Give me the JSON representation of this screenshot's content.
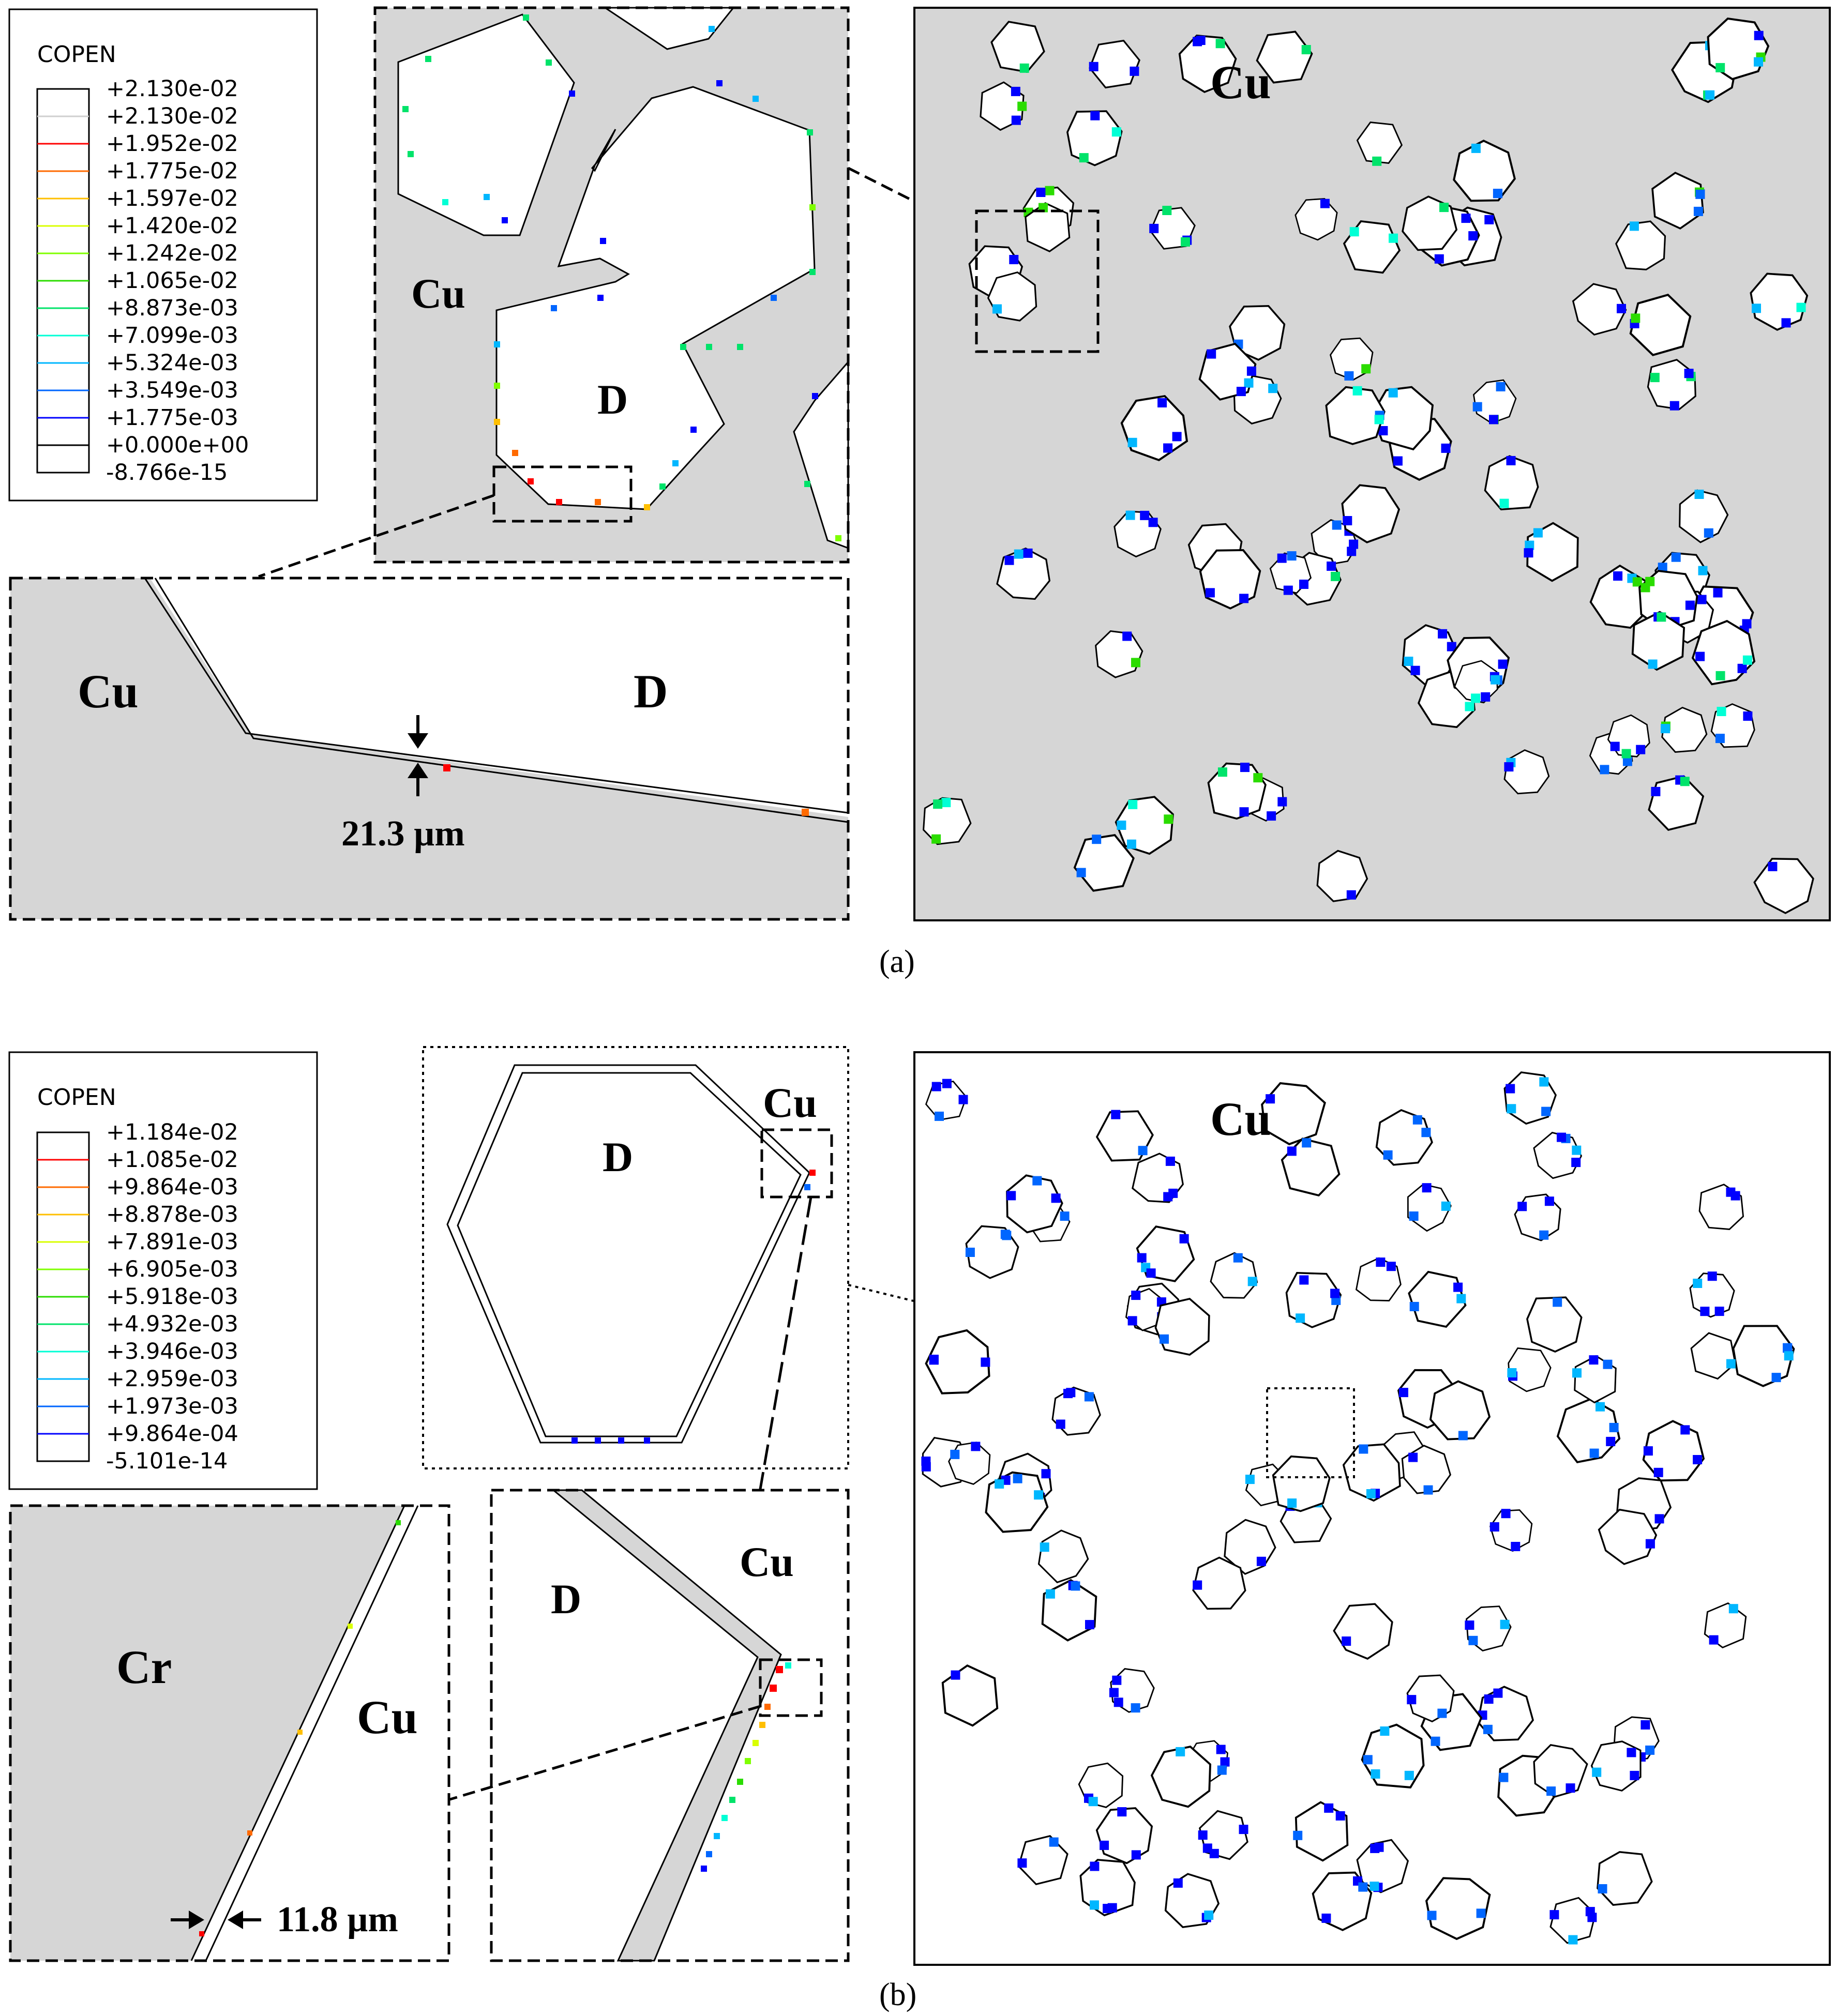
{
  "panel_a": {
    "legend": {
      "title": "COPEN",
      "entries": [
        "+2.130e-02",
        "+2.130e-02",
        "+1.952e-02",
        "+1.775e-02",
        "+1.597e-02",
        "+1.420e-02",
        "+1.242e-02",
        "+1.065e-02",
        "+8.873e-03",
        "+7.099e-03",
        "+5.324e-03",
        "+3.549e-03",
        "+1.775e-03",
        "+0.000e+00",
        "-8.766e-15"
      ],
      "colors": [
        "#000000",
        "#cfcfcf",
        "#ff0000",
        "#ff6a00",
        "#ffbf00",
        "#d9ff00",
        "#7fff00",
        "#2bdc00",
        "#00e36a",
        "#00ffd5",
        "#00b7ff",
        "#0066ff",
        "#0000ff",
        "#000000",
        "#000000"
      ]
    },
    "zoom1": {
      "cu": "Cu",
      "d": "D"
    },
    "zoom2": {
      "cu": "Cu",
      "d": "D",
      "thickness": "21.3 µm"
    },
    "main": {
      "cu": "Cu"
    },
    "caption": "(a)"
  },
  "panel_b": {
    "legend": {
      "title": "COPEN",
      "entries": [
        "+1.184e-02",
        "+1.085e-02",
        "+9.864e-03",
        "+8.878e-03",
        "+7.891e-03",
        "+6.905e-03",
        "+5.918e-03",
        "+4.932e-03",
        "+3.946e-03",
        "+2.959e-03",
        "+1.973e-03",
        "+9.864e-04",
        "-5.101e-14"
      ],
      "colors": [
        "#000000",
        "#ff0000",
        "#ff6a00",
        "#ffbf00",
        "#d9ff00",
        "#7fff00",
        "#2bdc00",
        "#00e36a",
        "#00ffd5",
        "#00b7ff",
        "#0066ff",
        "#0000ff",
        "#000000"
      ]
    },
    "zoom1": {
      "d": "D",
      "cu": "Cu"
    },
    "zoom2": {
      "cr": "Cr",
      "cu": "Cu",
      "thickness": "11.8 µm"
    },
    "zoom3": {
      "d": "D",
      "cu": "Cu"
    },
    "main": {
      "cu": "Cu"
    },
    "caption": "(b)"
  }
}
